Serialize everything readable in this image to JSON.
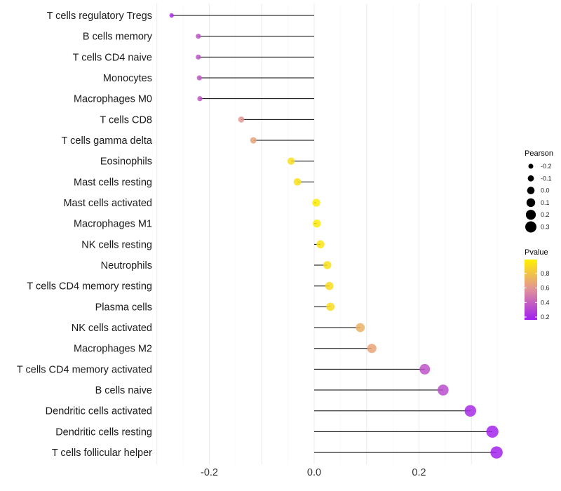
{
  "chart_data": {
    "type": "lollipop",
    "xlabel": "",
    "ylabel": "",
    "xlim": [
      -0.3,
      0.4
    ],
    "xticks": [
      -0.2,
      0.0,
      0.2
    ],
    "xtick_labels": [
      "-0.2",
      "0.0",
      "0.2"
    ],
    "grid": true,
    "categories": [
      "T cells regulatory  Tregs",
      "B cells memory",
      "T cells CD4 naive",
      "Monocytes",
      "Macrophages M0",
      "T cells CD8",
      "T cells gamma delta",
      "Eosinophils",
      "Mast cells resting",
      "Mast cells activated",
      "Macrophages M1",
      "NK cells resting",
      "Neutrophils",
      "T cells CD4 memory resting",
      "Plasma cells",
      "NK cells activated",
      "Macrophages M2",
      "T cells CD4 memory activated",
      "B cells naive",
      "Dendritic cells activated",
      "Dendritic cells resting",
      "T cells follicular helper"
    ],
    "pearson": [
      -0.272,
      -0.221,
      -0.221,
      -0.219,
      -0.218,
      -0.139,
      -0.116,
      -0.044,
      -0.032,
      0.004,
      0.005,
      0.012,
      0.025,
      0.029,
      0.031,
      0.088,
      0.11,
      0.211,
      0.246,
      0.298,
      0.34,
      0.348
    ],
    "pvalue": [
      0.2,
      0.35,
      0.35,
      0.36,
      0.36,
      0.6,
      0.66,
      0.92,
      0.93,
      0.98,
      0.97,
      0.95,
      0.93,
      0.91,
      0.91,
      0.72,
      0.67,
      0.35,
      0.32,
      0.2,
      0.17,
      0.16
    ],
    "legend": {
      "size_title": "Pearson",
      "size_labels": [
        "-0.2",
        "-0.1",
        "0.0",
        "0.1",
        "0.2",
        "0.3"
      ],
      "size_values": [
        -0.2,
        -0.1,
        0.0,
        0.1,
        0.2,
        0.3
      ],
      "color_title": "Pvalue",
      "color_labels": [
        "0.8",
        "0.6",
        "0.4",
        "0.2"
      ],
      "color_values": [
        0.8,
        0.6,
        0.4,
        0.2
      ],
      "color_range": [
        0.16,
        0.99
      ],
      "placement": "right"
    },
    "colors": {
      "low": "#A020F0",
      "mid": "#E0909A",
      "high": "#FFF000"
    }
  }
}
